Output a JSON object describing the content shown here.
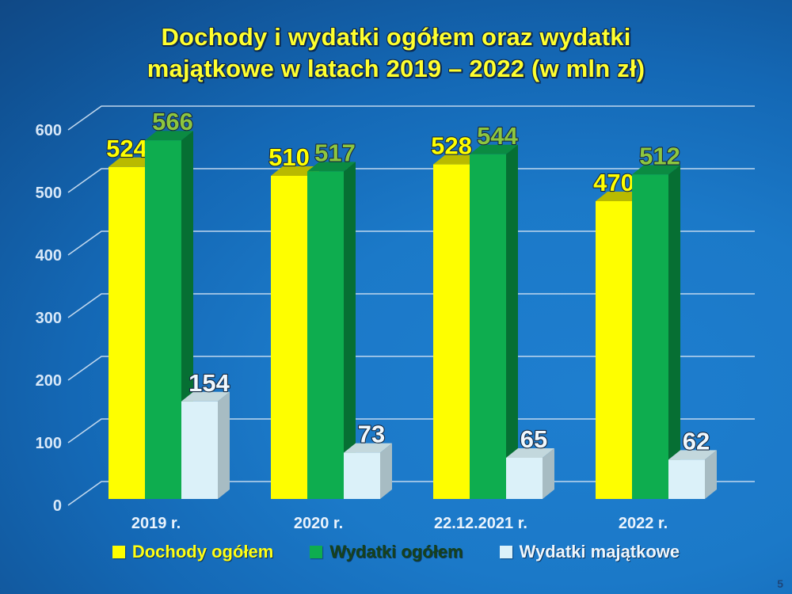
{
  "slide": {
    "title_line1": "Dochody i wydatki ogółem oraz wydatki",
    "title_line2": "majątkowe w latach 2019 – 2022 (w mln zł)",
    "page_number": "5"
  },
  "chart_data": {
    "type": "bar",
    "variant": "3d-column",
    "title": "Dochody i wydatki ogółem oraz wydatki majątkowe w latach 2019 – 2022 (w mln zł)",
    "categories": [
      "2019 r.",
      "2020 r.",
      "22.12.2021 r.",
      "2022 r."
    ],
    "series": [
      {
        "name": "Dochody ogółem",
        "values": [
          524,
          510,
          528,
          470
        ],
        "color": "#fefe00",
        "top_color": "#b9ba00",
        "side_color": "#c9c900",
        "label_color": "#ffff00",
        "legend_text_color": "#ffff14"
      },
      {
        "name": "Wydatki ogółem",
        "values": [
          566,
          517,
          544,
          512
        ],
        "color": "#0ead4f",
        "top_color": "#0b8b42",
        "side_color": "#066f33",
        "label_color": "#8dc63f",
        "legend_text_color": "#16421c"
      },
      {
        "name": "Wydatki majątkowe",
        "values": [
          154,
          73,
          65,
          62
        ],
        "color": "#dbf1f9",
        "top_color": "#c3d8dd",
        "side_color": "#a7bcc3",
        "label_color": "#f0f8fd",
        "legend_text_color": "#eff7fd"
      }
    ],
    "y_axis": {
      "min": 0,
      "max": 600,
      "step": 100,
      "tick_labels": [
        "0",
        "100",
        "200",
        "300",
        "400",
        "500",
        "600"
      ]
    },
    "grid": true,
    "legend_position": "bottom",
    "colors": {
      "grid_line": "#c9ddf0",
      "axis_tick_text": "#d8e8f8",
      "category_text": "#eaf3fc",
      "value_label_outline": "#17293f"
    }
  }
}
